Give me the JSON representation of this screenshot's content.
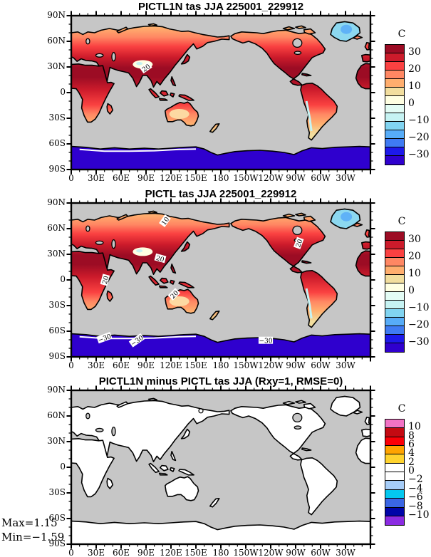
{
  "figure": {
    "background": "#FFFFFF",
    "ocean_color": "#C6C6C6",
    "coastline_color": "#000000"
  },
  "axes": {
    "x_tick_labels": [
      "0",
      "30E",
      "60E",
      "90E",
      "120E",
      "150E",
      "180",
      "150W",
      "120W",
      "90W",
      "60W",
      "30W"
    ],
    "y_tick_labels": [
      "90N",
      "60N",
      "30N",
      "0",
      "30S",
      "60S",
      "90S"
    ]
  },
  "panels": [
    {
      "title": "PICTL1N tas JJA 225001_229912",
      "map_style": "temperature",
      "colorbar": {
        "unit_label": "C",
        "tick_labels": [
          "30",
          "20",
          "10",
          "0",
          "−10",
          "−20",
          "−30"
        ],
        "colors": [
          "#9C0C24",
          "#CC1B2B",
          "#FA4141",
          "#FF8763",
          "#FFAE6E",
          "#F2DE9E",
          "#FFFFE2",
          "#E3FCF5",
          "#C6F3F3",
          "#81D4F1",
          "#57ACF8",
          "#3F7BF3",
          "#1D19EA",
          "#2F00CE"
        ]
      },
      "contour_labels": [
        {
          "text": "20",
          "lon": 90,
          "lat": 29,
          "rot": -35
        }
      ]
    },
    {
      "title": "PICTL tas JJA 225001_229912",
      "map_style": "temperature",
      "colorbar": {
        "unit_label": "C",
        "tick_labels": [
          "30",
          "20",
          "10",
          "0",
          "−10",
          "−20",
          "−30"
        ],
        "colors": [
          "#9C0C24",
          "#CC1B2B",
          "#FA4141",
          "#FF8763",
          "#FFAE6E",
          "#F2DE9E",
          "#FFFFE2",
          "#E3FCF5",
          "#C6F3F3",
          "#81D4F1",
          "#57ACF8",
          "#3F7BF3",
          "#1D19EA",
          "#2F00CE"
        ]
      },
      "contour_labels": [
        {
          "text": "10",
          "lon": 113,
          "lat": 69,
          "rot": -55
        },
        {
          "text": "20",
          "lon": 107,
          "lat": 25,
          "rot": 15
        },
        {
          "text": "20",
          "lon": 41,
          "lat": 0,
          "rot": -75
        },
        {
          "text": "20",
          "lon": 124,
          "lat": -17,
          "rot": -45
        },
        {
          "text": "20",
          "lon": 274,
          "lat": 43,
          "rot": -70
        },
        {
          "text": "−30",
          "lon": 40,
          "lat": -68,
          "rot": -20
        },
        {
          "text": "−30",
          "lon": 79,
          "lat": -71,
          "rot": -35
        },
        {
          "text": "−30",
          "lon": 234,
          "lat": -71,
          "rot": 0
        }
      ]
    },
    {
      "title": "PICTL1N minus PICTL tas JJA (Rxy=1, RMSE=0)",
      "map_style": "difference",
      "colorbar": {
        "unit_label": "C",
        "tick_labels": [
          "10",
          "8",
          "6",
          "4",
          "2",
          "0",
          "−2",
          "−4",
          "−6",
          "−8",
          "−10"
        ],
        "colors": [
          "#F272C5",
          "#C40A12",
          "#FB0007",
          "#FFA400",
          "#FFD32E",
          "#FFFFFF",
          "#FFFFFF",
          "#A6CDF8",
          "#04C8F0",
          "#3A66E4",
          "#0004A8",
          "#8B2BE2"
        ]
      },
      "contour_labels": []
    }
  ],
  "annotations": {
    "max": "Max=1.15",
    "min": "Min=−1.59"
  },
  "chart_data": [
    {
      "type": "heatmap",
      "title": "PICTL1N tas JJA 225001_229912",
      "variable": "tas (surface air temperature)",
      "season": "JJA",
      "period": "225001_229912",
      "units": "C",
      "projection": "global cylindrical equidistant, 90N-90S, centered on 180; ocean masked gray, land-only shading",
      "x_ticks": [
        "0",
        "30E",
        "60E",
        "90E",
        "120E",
        "150E",
        "180",
        "150W",
        "120W",
        "90W",
        "60W",
        "30W"
      ],
      "y_ticks": [
        "90N",
        "60N",
        "30N",
        "0",
        "30S",
        "60S",
        "90S"
      ],
      "contour_levels": [
        -30,
        -25,
        -20,
        -15,
        -10,
        -5,
        0,
        5,
        10,
        15,
        20,
        25,
        30
      ],
      "colorbar_ticks": [
        30,
        20,
        10,
        0,
        -10,
        -20,
        -30
      ],
      "field_summary": "25-32C (dark red) over N Africa, Arabia, India, S Asia and SW North America; 10-20C (orange/peach) across high-latitude Eurasia, Canada, S Africa and Australia; ~0C pale band over Tibet; -5 to -15C (light blue) over Greenland; below -30C (dark blue) over Antarctica; labeled 20C contour over the Tibetan Plateau margin"
    },
    {
      "type": "heatmap",
      "title": "PICTL tas JJA 225001_229912",
      "variable": "tas (surface air temperature)",
      "season": "JJA",
      "period": "225001_229912",
      "units": "C",
      "projection": "global cylindrical equidistant, 90N-90S, centered on 180; ocean masked gray, land-only shading",
      "x_ticks": [
        "0",
        "30E",
        "60E",
        "90E",
        "120E",
        "150E",
        "180",
        "150W",
        "120W",
        "90W",
        "60W",
        "30W"
      ],
      "y_ticks": [
        "90N",
        "60N",
        "30N",
        "0",
        "30S",
        "60S",
        "90S"
      ],
      "contour_levels": [
        -30,
        -25,
        -20,
        -15,
        -10,
        -5,
        0,
        5,
        10,
        15,
        20,
        25,
        30
      ],
      "colorbar_ticks": [
        30,
        20,
        10,
        0,
        -10,
        -20,
        -30
      ],
      "field_summary": "visually identical to PICTL1N panel; labeled contours: 10C over NE Siberia, 20C over S China, E Africa, N Australia and S North America, -30C contours along the Antarctic coast"
    },
    {
      "type": "heatmap",
      "title": "PICTL1N minus PICTL tas JJA (Rxy=1, RMSE=0)",
      "variable": "tas difference (PICTL1N - PICTL)",
      "units": "C",
      "projection": "global cylindrical equidistant, 90N-90S, centered on 180; ocean masked gray",
      "x_ticks": [
        "0",
        "30E",
        "60E",
        "90E",
        "120E",
        "150E",
        "180",
        "150W",
        "120W",
        "90W",
        "60W",
        "30W"
      ],
      "y_ticks": [
        "90N",
        "60N",
        "30N",
        "0",
        "30S",
        "60S",
        "90S"
      ],
      "contour_levels": [
        -10,
        -8,
        -6,
        -4,
        -2,
        0,
        2,
        4,
        6,
        8,
        10
      ],
      "colorbar_ticks": [
        10,
        8,
        6,
        4,
        2,
        0,
        -2,
        -4,
        -6,
        -8,
        -10
      ],
      "max": 1.15,
      "min": -1.59,
      "pattern_correlation_Rxy": 1,
      "RMSE": 0,
      "field_summary": "difference is near zero everywhere: all land falls in the -2..+2C white band"
    }
  ]
}
